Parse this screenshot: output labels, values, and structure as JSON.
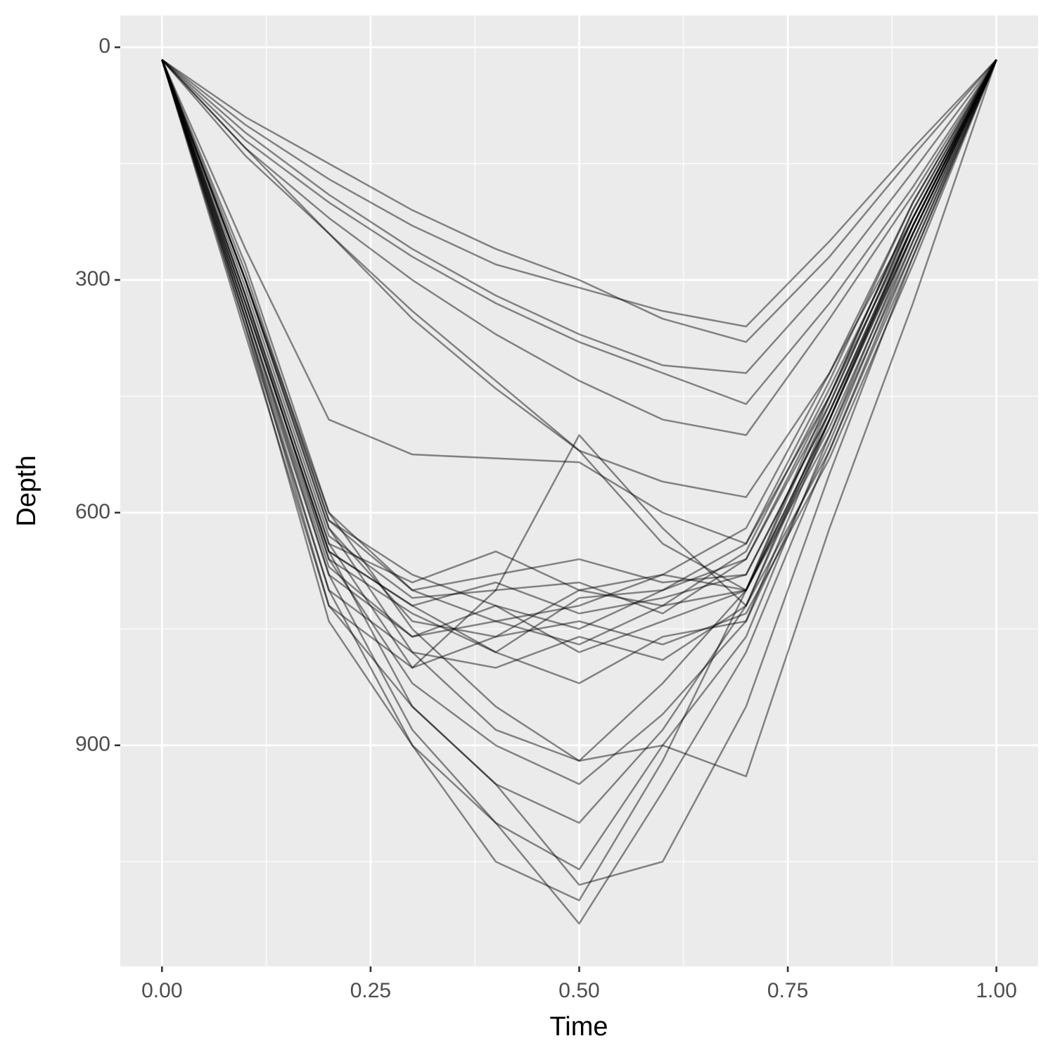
{
  "chart_data": {
    "type": "line",
    "x_label": "Time",
    "y_label": "Depth",
    "x": [
      0,
      0.1,
      0.2,
      0.3,
      0.4,
      0.5,
      0.6,
      0.7,
      0.8,
      0.9,
      1.0
    ],
    "xlim": [
      -0.05,
      1.05
    ],
    "xticks": [
      {
        "value": 0,
        "label": "0.00"
      },
      {
        "value": 0.25,
        "label": "0.25"
      },
      {
        "value": 0.5,
        "label": "0.50"
      },
      {
        "value": 0.75,
        "label": "0.75"
      },
      {
        "value": 1,
        "label": "1.00"
      }
    ],
    "x_minor_grid": [
      0.125,
      0.375,
      0.625,
      0.875
    ],
    "ylim": [
      -41,
      1185
    ],
    "y_reversed": true,
    "yticks": [
      0,
      300,
      600,
      900
    ],
    "y_minor_grid": [
      150,
      450,
      750,
      1050
    ],
    "grid": true,
    "color": "#000000",
    "opacity": 0.45,
    "series": [
      {
        "values": [
          16,
          330,
          650,
          720,
          690,
          730,
          710,
          680,
          470,
          240,
          16
        ]
      },
      {
        "values": [
          16,
          300,
          620,
          740,
          760,
          700,
          720,
          650,
          440,
          220,
          16
        ]
      },
      {
        "values": [
          16,
          350,
          680,
          760,
          720,
          780,
          740,
          700,
          500,
          260,
          16
        ]
      },
      {
        "values": [
          16,
          280,
          600,
          700,
          740,
          720,
          680,
          620,
          420,
          200,
          16
        ]
      },
      {
        "values": [
          16,
          360,
          700,
          780,
          800,
          760,
          790,
          720,
          520,
          270,
          16
        ]
      },
      {
        "values": [
          16,
          320,
          640,
          690,
          650,
          700,
          680,
          700,
          480,
          230,
          16
        ]
      },
      {
        "values": [
          16,
          340,
          660,
          730,
          780,
          820,
          760,
          740,
          510,
          250,
          16
        ]
      },
      {
        "values": [
          16,
          310,
          630,
          710,
          700,
          690,
          730,
          660,
          450,
          210,
          16
        ]
      },
      {
        "values": [
          16,
          290,
          610,
          680,
          720,
          750,
          700,
          640,
          430,
          200,
          16
        ]
      },
      {
        "values": [
          16,
          370,
          720,
          800,
          760,
          740,
          770,
          730,
          530,
          280,
          16
        ]
      },
      {
        "values": [
          16,
          330,
          650,
          850,
          950,
          1000,
          880,
          720,
          470,
          230,
          16
        ]
      },
      {
        "values": [
          16,
          350,
          700,
          900,
          1050,
          1100,
          920,
          700,
          460,
          220,
          16
        ]
      },
      {
        "values": [
          16,
          340,
          680,
          880,
          1000,
          1060,
          900,
          760,
          500,
          240,
          16
        ]
      },
      {
        "values": [
          16,
          320,
          660,
          820,
          900,
          950,
          860,
          740,
          480,
          230,
          16
        ]
      },
      {
        "values": [
          16,
          300,
          620,
          780,
          880,
          920,
          820,
          700,
          450,
          210,
          16
        ]
      },
      {
        "values": [
          16,
          110,
          190,
          260,
          320,
          370,
          410,
          420,
          300,
          160,
          16
        ]
      },
      {
        "values": [
          16,
          100,
          170,
          230,
          280,
          310,
          340,
          360,
          250,
          130,
          16
        ]
      },
      {
        "values": [
          16,
          90,
          150,
          210,
          260,
          300,
          350,
          380,
          270,
          140,
          16
        ]
      },
      {
        "values": [
          16,
          120,
          200,
          270,
          330,
          380,
          420,
          460,
          330,
          180,
          16
        ]
      },
      {
        "values": [
          16,
          130,
          220,
          300,
          370,
          430,
          480,
          500,
          350,
          190,
          16
        ]
      },
      {
        "values": [
          16,
          140,
          240,
          340,
          430,
          520,
          560,
          580,
          420,
          220,
          16
        ]
      },
      {
        "values": [
          16,
          260,
          480,
          525,
          530,
          535,
          600,
          640,
          450,
          230,
          16
        ]
      },
      {
        "values": [
          16,
          300,
          600,
          750,
          850,
          920,
          900,
          940,
          620,
          330,
          16
        ]
      },
      {
        "values": [
          16,
          320,
          640,
          800,
          700,
          500,
          620,
          720,
          480,
          240,
          16
        ]
      },
      {
        "values": [
          16,
          350,
          720,
          850,
          950,
          1080,
          1050,
          850,
          550,
          270,
          16
        ]
      },
      {
        "values": [
          16,
          360,
          740,
          900,
          1000,
          1130,
          960,
          780,
          520,
          260,
          16
        ]
      },
      {
        "values": [
          16,
          130,
          240,
          350,
          440,
          520,
          640,
          700,
          480,
          240,
          16
        ]
      },
      {
        "values": [
          16,
          330,
          650,
          720,
          780,
          710,
          700,
          660,
          460,
          220,
          16
        ]
      },
      {
        "values": [
          16,
          300,
          610,
          700,
          680,
          660,
          690,
          680,
          470,
          230,
          16
        ]
      },
      {
        "values": [
          16,
          340,
          670,
          760,
          740,
          770,
          720,
          700,
          490,
          250,
          16
        ]
      }
    ]
  }
}
